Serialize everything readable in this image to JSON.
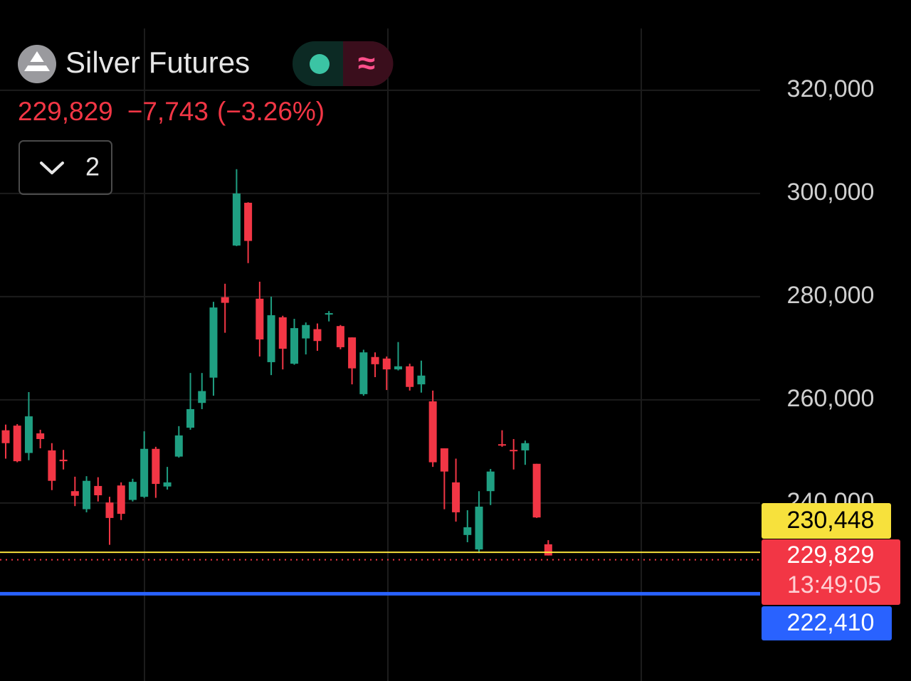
{
  "chart_data": {
    "type": "candlestick",
    "title": "Silver Futures",
    "last_price": "229,829",
    "change": "−7,743",
    "change_pct": "(−3.26%)",
    "indicator_count": "2",
    "up_color": "#1f9f82",
    "down_color": "#f23645",
    "ylim": [
      205500,
      337500
    ],
    "yticks": [
      {
        "value": 320000,
        "label": "320,000"
      },
      {
        "value": 300000,
        "label": "300,000"
      },
      {
        "value": 280000,
        "label": "280,000"
      },
      {
        "value": 260000,
        "label": "260,000"
      },
      {
        "value": 240000,
        "label": "240,000"
      }
    ],
    "grid": true,
    "open": [
      254100,
      255000,
      249700,
      253500,
      250200,
      248400,
      242300,
      238800,
      243300,
      240100,
      243400,
      240600,
      241200,
      250500,
      243200,
      249000,
      254600,
      259400,
      264300,
      279900,
      289900,
      298200,
      279600,
      267300,
      276000,
      267000,
      271900,
      273700,
      276600,
      274300,
      272100,
      261100,
      268300,
      268000,
      265900,
      266500,
      263000,
      259700,
      250600,
      244000,
      233800,
      231000,
      242300,
      251400,
      250300,
      250200,
      247600,
      232000
    ],
    "high": [
      255200,
      255300,
      261500,
      254200,
      251600,
      250300,
      245100,
      245200,
      245000,
      241200,
      244000,
      244700,
      253900,
      250900,
      247000,
      254900,
      265200,
      265200,
      279000,
      282500,
      304700,
      298300,
      282900,
      280000,
      276300,
      275700,
      275000,
      274800,
      277200,
      274500,
      272100,
      269700,
      269200,
      268400,
      271200,
      267000,
      267600,
      261800,
      250600,
      248600,
      238600,
      242300,
      246600,
      254100,
      252400,
      252100,
      247600,
      232800
    ],
    "low": [
      248600,
      247900,
      248300,
      250600,
      242500,
      246500,
      239400,
      238200,
      240300,
      231900,
      236700,
      240300,
      241000,
      241000,
      242600,
      248800,
      254200,
      258200,
      260800,
      273000,
      289800,
      286500,
      268400,
      264800,
      265900,
      266800,
      268800,
      269500,
      275200,
      269800,
      263000,
      260800,
      264400,
      261900,
      265700,
      261800,
      261400,
      247000,
      238800,
      236400,
      232400,
      230300,
      239600,
      250900,
      246500,
      247400,
      237100,
      229829
    ],
    "close": [
      251600,
      248100,
      256800,
      252400,
      244300,
      248100,
      241400,
      244300,
      241500,
      237100,
      237900,
      244100,
      250500,
      243700,
      244000,
      253100,
      258200,
      261700,
      277900,
      278800,
      300000,
      290800,
      271700,
      276400,
      269900,
      273900,
      274500,
      271400,
      276800,
      270200,
      266100,
      269200,
      266900,
      265900,
      266500,
      262500,
      264700,
      247900,
      246100,
      238200,
      235300,
      239300,
      246100,
      251200,
      250100,
      251600,
      237200,
      229829
    ],
    "price_lines": [
      {
        "value": 230448,
        "label": "230,448",
        "color": "#f7e13c",
        "style": "solid"
      },
      {
        "value": 229829,
        "label": "229,829",
        "color": "#f23645",
        "style": "dotted",
        "countdown": "13:49:05"
      },
      {
        "value": 222410,
        "label": "222,410",
        "color": "#2962ff",
        "style": "thick"
      }
    ]
  }
}
